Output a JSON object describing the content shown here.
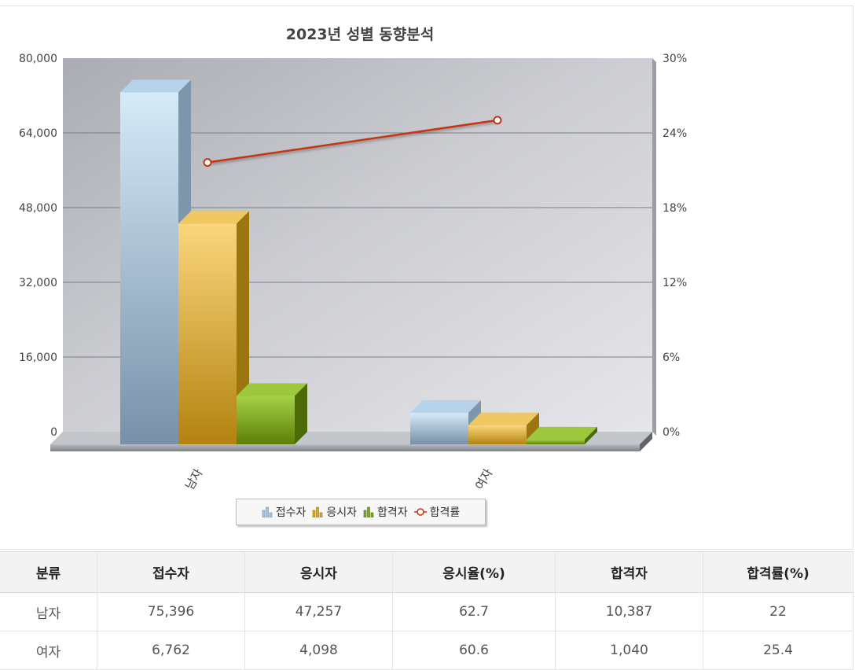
{
  "chart_data": {
    "type": "bar",
    "title": "2023년 성별 동향분석",
    "categories": [
      "남자",
      "여자"
    ],
    "series": [
      {
        "name": "접수자",
        "kind": "bar",
        "axis": "left",
        "values": [
          75396,
          6762
        ]
      },
      {
        "name": "응시자",
        "kind": "bar",
        "axis": "left",
        "values": [
          47257,
          4098
        ]
      },
      {
        "name": "합격자",
        "kind": "bar",
        "axis": "left",
        "values": [
          10387,
          1040
        ]
      },
      {
        "name": "합격률",
        "kind": "line",
        "axis": "right",
        "values": [
          22,
          25.4
        ]
      }
    ],
    "ylim": [
      0,
      80000
    ],
    "y2lim": [
      0,
      30
    ],
    "yticks": [
      "0",
      "16,000",
      "32,000",
      "48,000",
      "64,000",
      "80,000"
    ],
    "y2ticks": [
      "0%",
      "6%",
      "12%",
      "18%",
      "24%",
      "30%"
    ],
    "grid": true,
    "legend": "bottom-center"
  },
  "colors": {
    "접수자": "#a9c5dd",
    "응시자": "#e0a827",
    "합격자": "#7fa92a",
    "합격률": "#c6360d"
  },
  "table": {
    "headers": [
      "분류",
      "접수자",
      "응시자",
      "응시율(%)",
      "합격자",
      "합격률(%)"
    ],
    "rows": [
      [
        "남자",
        "75,396",
        "47,257",
        "62.7",
        "10,387",
        "22"
      ],
      [
        "여자",
        "6,762",
        "4,098",
        "60.6",
        "1,040",
        "25.4"
      ]
    ]
  }
}
